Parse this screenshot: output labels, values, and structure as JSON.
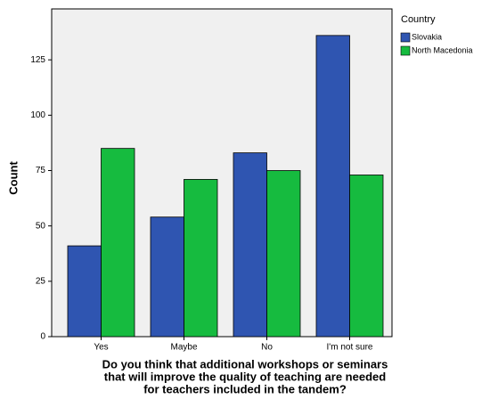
{
  "chart_data": {
    "type": "bar",
    "x_label": [
      "Do you think that additional workshops or seminars",
      "that will improve the quality of teaching are needed",
      "for teachers included in the tandem?"
    ],
    "y_label": "Count",
    "legend_title": "Country",
    "legend": "right",
    "categories": [
      "Yes",
      "Maybe",
      "No",
      "I'm not sure"
    ],
    "series": [
      {
        "name": "Slovakia",
        "color": "#2f55b1",
        "values": [
          41,
          54,
          83,
          136
        ]
      },
      {
        "name": "North Macedonia",
        "color": "#16bb3f",
        "values": [
          85,
          71,
          75,
          73
        ]
      }
    ],
    "ylim": [
      0,
      148
    ],
    "yticks": [
      0,
      25,
      50,
      75,
      100,
      125
    ],
    "grid": false
  }
}
